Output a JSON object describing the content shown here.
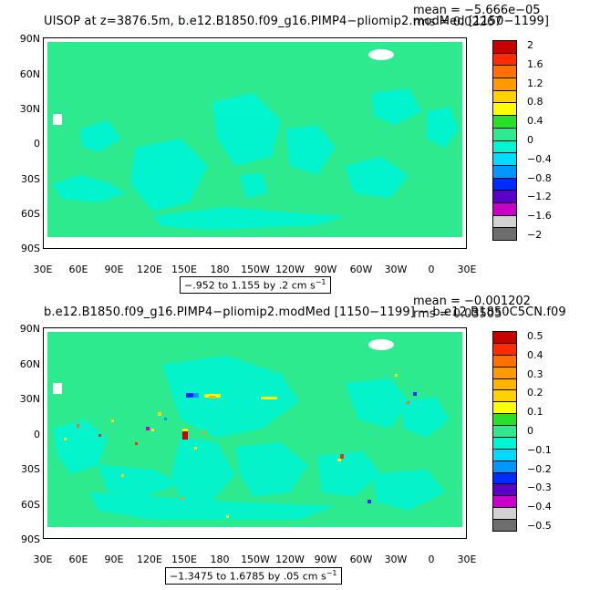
{
  "panel1": {
    "title": "UISOP at z=3876.5m, b.e12.B1850.f09_g16.PIMP4−pliomip2.modMed [1150−1199]",
    "mean": "mean = −5.666e−05",
    "rms": "rms = 0.02267",
    "range_label": "−.952 to 1.155 by .2 cm s",
    "range_sup": "−1",
    "colorbar_labels": [
      "2",
      "1.6",
      "1.2",
      "0.8",
      "0.4",
      "0",
      "−0.4",
      "−0.8",
      "−1.2",
      "−1.6",
      "−2"
    ],
    "colorbar_colors": [
      "#c80000",
      "#ff2a00",
      "#ff7000",
      "#ff9a00",
      "#ffd200",
      "#ffff00",
      "#28e028",
      "#2eea8e",
      "#00f5d2",
      "#00dcff",
      "#0096ff",
      "#002bff",
      "#5a00c8",
      "#c800c8",
      "#d2d2d2",
      "#6e6e6e"
    ]
  },
  "panel2": {
    "title": "b.e12.B1850.f09_g16.PIMP4−pliomip2.modMed [1150−1199] − b.e12.B1850C5CN.f09",
    "mean": "mean = −0.001202",
    "rms": "rms = 0.03505",
    "range_label": "−1.3475 to 1.6785 by .05 cm s",
    "range_sup": "−1",
    "colorbar_labels": [
      "0.5",
      "0.4",
      "0.3",
      "0.2",
      "0.1",
      "0",
      "−0.1",
      "−0.2",
      "−0.3",
      "−0.4",
      "−0.5"
    ],
    "colorbar_colors": [
      "#c80000",
      "#ff2a00",
      "#ff7000",
      "#ff9a00",
      "#ffb400",
      "#ffd200",
      "#ffff00",
      "#28e028",
      "#2eea8e",
      "#00f5d2",
      "#00dcff",
      "#0096ff",
      "#002bff",
      "#5a00c8",
      "#c800c8",
      "#d2d2d2",
      "#6e6e6e"
    ]
  },
  "axes": {
    "lat_ticks": [
      "90N",
      "60N",
      "30N",
      "0",
      "30S",
      "60S",
      "90S"
    ],
    "lon_ticks": [
      "30E",
      "60E",
      "90E",
      "120E",
      "150E",
      "180",
      "150W",
      "120W",
      "90W",
      "60W",
      "30W",
      "0",
      "30E"
    ]
  },
  "colors": {
    "ocean_base": "#2eea8e",
    "anomaly_cyan": "#00f5d2",
    "land_white": "#ffffff"
  }
}
